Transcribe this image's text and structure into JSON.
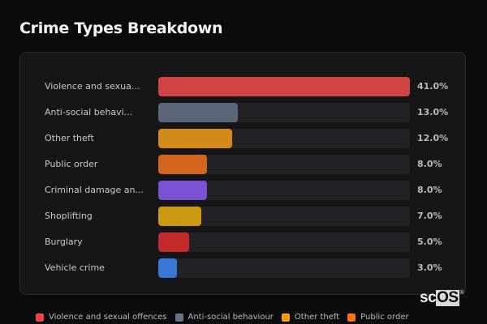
{
  "title": "Crime Types Breakdown",
  "rows": [
    {
      "label": "Violence and sexua...",
      "pct": "41.0%",
      "value": 41.0,
      "color": "#d24444"
    },
    {
      "label": "Anti-social behavi...",
      "pct": "13.0%",
      "value": 13.0,
      "color": "#5b6678"
    },
    {
      "label": "Other theft",
      "pct": "12.0%",
      "value": 12.0,
      "color": "#d48a17"
    },
    {
      "label": "Public order",
      "pct": "8.0%",
      "value": 8.0,
      "color": "#d4651e"
    },
    {
      "label": "Criminal damage an...",
      "pct": "8.0%",
      "value": 8.0,
      "color": "#7c52d4"
    },
    {
      "label": "Shoplifting",
      "pct": "7.0%",
      "value": 7.0,
      "color": "#cc9a12"
    },
    {
      "label": "Burglary",
      "pct": "5.0%",
      "value": 5.0,
      "color": "#c42a2a"
    },
    {
      "label": "Vehicle crime",
      "pct": "3.0%",
      "value": 3.0,
      "color": "#3a78d8"
    }
  ],
  "legend": [
    {
      "label": "Violence and sexual offences",
      "color": "#ef4444"
    },
    {
      "label": "Anti-social behaviour",
      "color": "#64748b"
    },
    {
      "label": "Other theft",
      "color": "#f59e0b"
    },
    {
      "label": "Public order",
      "color": "#f97316"
    }
  ],
  "logo": {
    "sc": "sc",
    "os": "OS",
    "reg": "®"
  },
  "chart_data": {
    "type": "bar",
    "orientation": "horizontal",
    "title": "Crime Types Breakdown",
    "categories": [
      "Violence and sexual offences",
      "Anti-social behaviour",
      "Other theft",
      "Public order",
      "Criminal damage and arson",
      "Shoplifting",
      "Burglary",
      "Vehicle crime"
    ],
    "category_labels_displayed": [
      "Violence and sexua...",
      "Anti-social behavi...",
      "Other theft",
      "Public order",
      "Criminal damage an...",
      "Shoplifting",
      "Burglary",
      "Vehicle crime"
    ],
    "values": [
      41.0,
      13.0,
      12.0,
      8.0,
      8.0,
      7.0,
      5.0,
      3.0
    ],
    "value_labels": [
      "41.0%",
      "13.0%",
      "12.0%",
      "8.0%",
      "8.0%",
      "7.0%",
      "5.0%",
      "3.0%"
    ],
    "colors": [
      "#d24444",
      "#5b6678",
      "#d48a17",
      "#d4651e",
      "#7c52d4",
      "#cc9a12",
      "#c42a2a",
      "#3a78d8"
    ],
    "xlabel": "",
    "ylabel": "",
    "unit": "%",
    "scale_max": 41.0,
    "grid": false,
    "legend_position": "bottom",
    "legend_entries": [
      "Violence and sexual offences",
      "Anti-social behaviour",
      "Other theft",
      "Public order"
    ]
  }
}
